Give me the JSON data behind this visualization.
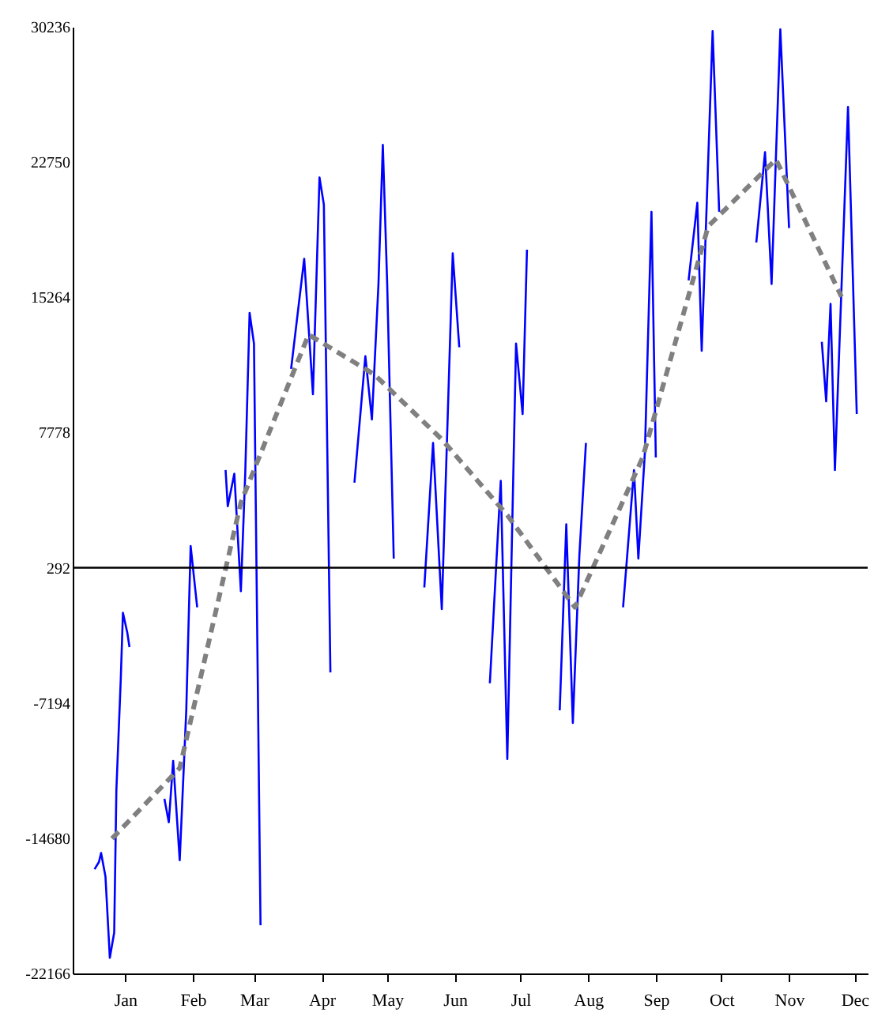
{
  "chart_data": {
    "type": "line",
    "xlim": [
      "--01-01",
      "--12-31"
    ],
    "xticks": [
      {
        "value": "--01-25",
        "label": "Jan"
      },
      {
        "value": "--02-25",
        "label": "Feb"
      },
      {
        "value": "--03-25",
        "label": "Mar"
      },
      {
        "value": "--04-25",
        "label": "Apr"
      },
      {
        "value": "--05-25",
        "label": "May"
      },
      {
        "value": "--06-25",
        "label": "Jun"
      },
      {
        "value": "--07-25",
        "label": "Jul"
      },
      {
        "value": "--08-25",
        "label": "Aug"
      },
      {
        "value": "--09-25",
        "label": "Sep"
      },
      {
        "value": "--10-25",
        "label": "Oct"
      },
      {
        "value": "--11-25",
        "label": "Nov"
      },
      {
        "value": "--12-25",
        "label": "Dec"
      }
    ],
    "ylim": [
      -22166,
      30236
    ],
    "yticks": [
      -22166,
      -14680,
      -7194,
      292,
      7778,
      15264,
      22750,
      30236
    ],
    "grid": false,
    "series": [
      {
        "color": "#0000ff",
        "x": [
          "--01-11",
          "--01-13",
          "--01-14",
          "--01-16",
          "--01-18",
          "--01-20",
          "--01-21",
          "--01-23",
          "--01-24",
          "--01-26",
          "--01-27"
        ],
        "values": [
          -16400,
          -16000,
          -15500,
          -16800,
          -21300,
          -19900,
          -12000,
          -5900,
          -2200,
          -3300,
          -4100
        ]
      },
      {
        "color": "#0000ff",
        "x": [
          "--02-12",
          "--02-14",
          "--02-16",
          "--02-19",
          "--02-22",
          "--02-24",
          "--02-27"
        ],
        "values": [
          -12500,
          -13800,
          -10400,
          -15900,
          -7600,
          1500,
          -1900
        ]
      },
      {
        "color": "#0000ff",
        "x": [
          "--03-12",
          "--03-13",
          "--03-16",
          "--03-19",
          "--03-21",
          "--03-23",
          "--03-25",
          "--03-28"
        ],
        "values": [
          5700,
          3700,
          5500,
          -1000,
          5500,
          14400,
          12700,
          -19500
        ]
      },
      {
        "color": "#0000ff",
        "x": [
          "--04-11",
          "--04-17",
          "--04-21",
          "--04-24",
          "--04-26",
          "--04-29"
        ],
        "values": [
          11300,
          17400,
          9900,
          21900,
          20400,
          -5500
        ]
      },
      {
        "color": "#0000ff",
        "x": [
          "--05-10",
          "--05-15",
          "--05-18",
          "--05-21",
          "--05-23",
          "--05-25",
          "--05-28"
        ],
        "values": [
          5000,
          12000,
          8500,
          16000,
          23700,
          16000,
          800
        ]
      },
      {
        "color": "#0000ff",
        "x": [
          "--06-11",
          "--06-15",
          "--06-19",
          "--06-24",
          "--06-27"
        ],
        "values": [
          -800,
          7200,
          -2000,
          17700,
          12500
        ]
      },
      {
        "color": "#0000ff",
        "x": [
          "--07-11",
          "--07-16",
          "--07-19",
          "--07-23",
          "--07-26",
          "--07-28"
        ],
        "values": [
          -6100,
          5100,
          -10300,
          12700,
          8800,
          17900
        ]
      },
      {
        "color": "#0000ff",
        "x": [
          "--08-12",
          "--08-15",
          "--08-18",
          "--08-21",
          "--08-24"
        ],
        "values": [
          -7600,
          2700,
          -8300,
          1000,
          7200
        ]
      },
      {
        "color": "#0000ff",
        "x": [
          "--09-10",
          "--09-15",
          "--09-17",
          "--09-20",
          "--09-23",
          "--09-25"
        ],
        "values": [
          -1900,
          5700,
          800,
          6700,
          20000,
          6400
        ]
      },
      {
        "color": "#0000ff",
        "x": [
          "--10-10",
          "--10-14",
          "--10-16",
          "--10-21",
          "--10-24"
        ],
        "values": [
          16200,
          20500,
          12300,
          30000,
          20000
        ]
      },
      {
        "color": "#0000ff",
        "x": [
          "--11-10",
          "--11-14",
          "--11-17",
          "--11-21",
          "--11-25"
        ],
        "values": [
          18300,
          23300,
          16000,
          30100,
          19100
        ]
      },
      {
        "color": "#0000ff",
        "x": [
          "--12-10",
          "--12-12",
          "--12-14",
          "--12-16",
          "--12-22",
          "--12-26"
        ],
        "values": [
          12800,
          9500,
          14900,
          5700,
          25800,
          8800
        ]
      },
      {
        "color": "#808080",
        "line_style": "dashed",
        "x": [
          "--01-19",
          "--02-19",
          "--03-19",
          "--04-19",
          "--05-19",
          "--06-19",
          "--07-19",
          "--08-19",
          "--09-19",
          "--10-19",
          "--11-19",
          "--12-19"
        ],
        "values": [
          -14700,
          -10800,
          3900,
          13200,
          11000,
          7400,
          3200,
          -1900,
          6400,
          19200,
          22900,
          15300
        ]
      }
    ],
    "ref_lines": [
      {
        "axis": "y",
        "value": 292,
        "color": "#000000"
      }
    ]
  }
}
